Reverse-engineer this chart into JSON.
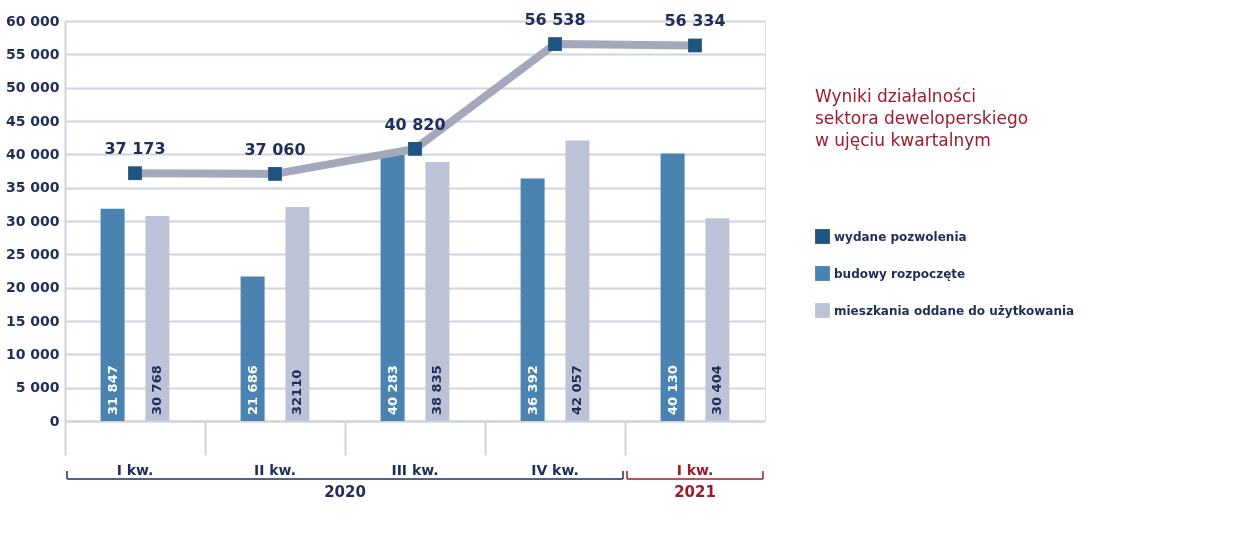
{
  "chart_data": {
    "type": "bar",
    "title": "Wyniki działalności sektora deweloperskiego w ujęciu kwartalnym",
    "categories": [
      "I kw.",
      "II kw.",
      "III kw.",
      "IV kw.",
      "I kw."
    ],
    "series": [
      {
        "name": "wydane pozwolenia",
        "type": "line",
        "color": "#1f5580",
        "values": [
          37173,
          37060,
          40820,
          56538,
          56334
        ],
        "value_labels": [
          "37 173",
          "37 060",
          "40 820",
          "56 538",
          "56 334"
        ]
      },
      {
        "name": "budowy rozpoczęte",
        "color": "#4a82b0",
        "values": [
          31847,
          21686,
          40283,
          36392,
          40130
        ],
        "value_labels": [
          "31 847",
          "21 686",
          "40 283",
          "36 392",
          "40 130"
        ]
      },
      {
        "name": "mieszkania oddane do użytkowania",
        "color": "#bcc3d6",
        "values": [
          30768,
          32110,
          38835,
          42057,
          30404
        ],
        "value_labels": [
          "30 768",
          "32110",
          "38 835",
          "42 057",
          "30 404"
        ]
      }
    ],
    "ylim": [
      0,
      60000
    ],
    "yticks": [
      {
        "value": 0,
        "label": "0"
      },
      {
        "value": 5000,
        "label": "5 000"
      },
      {
        "value": 10000,
        "label": "10 000"
      },
      {
        "value": 15000,
        "label": "15 000"
      },
      {
        "value": 20000,
        "label": "20 000"
      },
      {
        "value": 25000,
        "label": "25 000"
      },
      {
        "value": 30000,
        "label": "30 000"
      },
      {
        "value": 35000,
        "label": "35 000"
      },
      {
        "value": 40000,
        "label": "40 000"
      },
      {
        "value": 45000,
        "label": "45 000"
      },
      {
        "value": 50000,
        "label": "50 000"
      },
      {
        "value": 55000,
        "label": "55 000"
      },
      {
        "value": 60000,
        "label": "60 000"
      }
    ],
    "grid": "y",
    "legend": "right",
    "marker": "square",
    "annotations": [
      "2020",
      "2021"
    ]
  }
}
